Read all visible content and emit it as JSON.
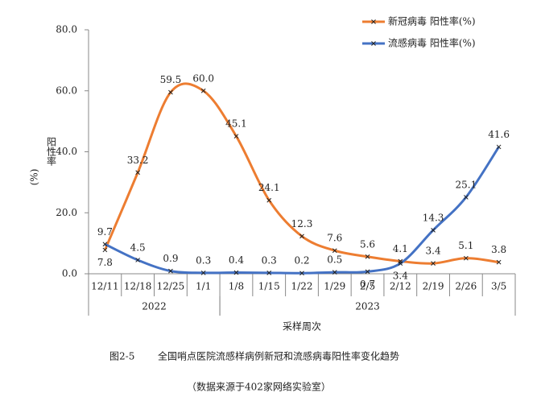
{
  "chart_data": {
    "type": "line",
    "categories": [
      "12/11",
      "12/18",
      "12/25",
      "1/1",
      "1/8",
      "1/15",
      "1/22",
      "1/29",
      "2/5",
      "2/12",
      "2/19",
      "2/26",
      "3/5"
    ],
    "groups": [
      {
        "label": "2022",
        "span": 4
      },
      {
        "label": "2023",
        "span": 9
      }
    ],
    "series": [
      {
        "name": "新冠病毒 阳性率(%)",
        "color": "#ed7d31",
        "values": [
          7.8,
          33.2,
          59.5,
          60.0,
          45.1,
          24.1,
          12.3,
          7.6,
          5.6,
          4.1,
          3.4,
          5.1,
          3.8
        ],
        "value_labels": [
          "7.8",
          "33.2",
          "59.5",
          "60.0",
          "45.1",
          "24.1",
          "12.3",
          "7.6",
          "5.6",
          "4.1",
          "3.4",
          "5.1",
          "3.8"
        ]
      },
      {
        "name": "流感病毒 阳性率(%)",
        "color": "#4472c4",
        "values": [
          9.7,
          4.5,
          0.9,
          0.3,
          0.4,
          0.3,
          0.2,
          0.5,
          0.7,
          3.4,
          14.3,
          25.1,
          41.6
        ],
        "value_labels": [
          "9.7",
          "4.5",
          "0.9",
          "0.3",
          "0.4",
          "0.3",
          "0.2",
          "0.5",
          "0.7",
          "3.4",
          "14.3",
          "25.1",
          "41.6"
        ]
      }
    ],
    "ylim": [
      0,
      80
    ],
    "yticks": [
      {
        "value": 0,
        "label": "0.0"
      },
      {
        "value": 20,
        "label": "20.0"
      },
      {
        "value": 40,
        "label": "40.0"
      },
      {
        "value": 60,
        "label": "60.0"
      },
      {
        "value": 80,
        "label": "80.0"
      }
    ],
    "ylabel": [
      "阳性率",
      "(%)"
    ],
    "xlabel": "采样周次",
    "caption_label": "图2-5",
    "caption": "全国哨点医院流感样病例新冠和流感病毒阳性率变化趋势",
    "source": "（数据来源于402家网络实验室）",
    "smooth": true
  }
}
